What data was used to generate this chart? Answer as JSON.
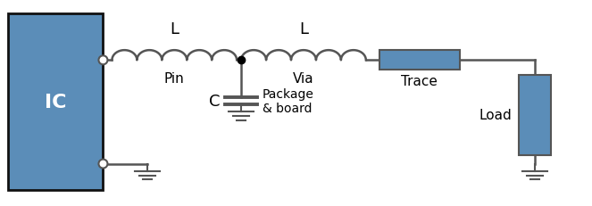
{
  "bg_color": "#ffffff",
  "line_color": "#555555",
  "ic_color": "#5b8db8",
  "ic_border": "#111111",
  "trace_color": "#5b8db8",
  "load_color": "#5b8db8",
  "ic_label": "IC",
  "l1_label": "L",
  "l1_sublabel": "Pin",
  "l2_label": "L",
  "l2_sublabel": "Via",
  "c_label": "C",
  "c_sublabel": "Package\n& board",
  "trace_label": "Trace",
  "load_label": "Load",
  "font_size_big": 13,
  "font_size_med": 11,
  "font_size_small": 10,
  "font_size_ic": 16
}
